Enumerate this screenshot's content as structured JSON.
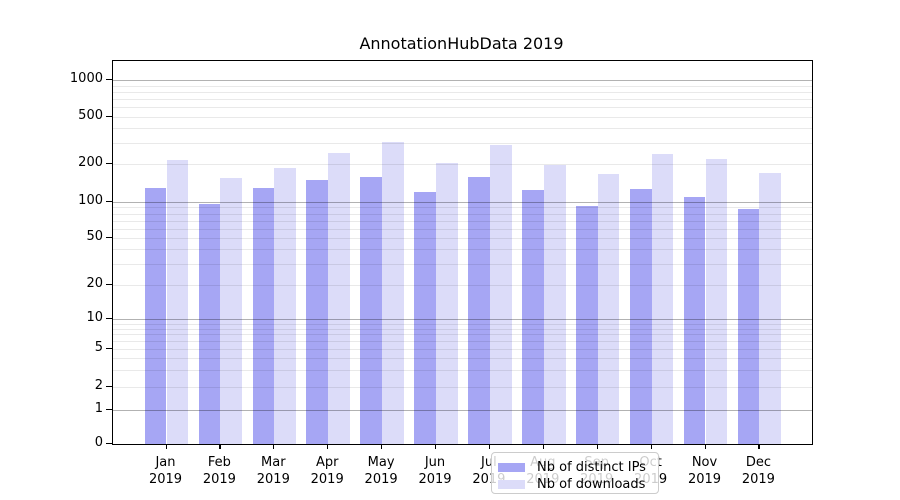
{
  "chart_data": {
    "type": "bar",
    "title": "AnnotationHubData 2019",
    "categories": [
      "Jan",
      "Feb",
      "Mar",
      "Apr",
      "May",
      "Jun",
      "Jul",
      "Aug",
      "Sep",
      "Oct",
      "Nov",
      "Dec"
    ],
    "category_year": "2019",
    "series": [
      {
        "name": "Nb of distinct IPs",
        "color": "#a6a6f4",
        "values": [
          130,
          97,
          130,
          149,
          158,
          120,
          157,
          124,
          92,
          126,
          110,
          87
        ]
      },
      {
        "name": "Nb of downloads",
        "color": "#dcdcf9",
        "values": [
          215,
          156,
          185,
          250,
          305,
          202,
          290,
          198,
          168,
          242,
          222,
          171
        ]
      }
    ],
    "yscale": "symlog",
    "ylim": [
      0,
      1400
    ],
    "y_ticks": [
      0,
      1,
      2,
      5,
      10,
      20,
      50,
      100,
      200,
      500,
      1000
    ],
    "major_gridlines": [
      1,
      10,
      100,
      1000
    ],
    "minor_gridlines": [
      2,
      3,
      4,
      5,
      6,
      7,
      8,
      9,
      20,
      30,
      40,
      50,
      60,
      70,
      80,
      90,
      200,
      300,
      400,
      500,
      600,
      700,
      800,
      900
    ],
    "grid": "on",
    "legend_position": "lower-center",
    "colors": {
      "spine": "#000000",
      "major_grid": "#b3b3b3",
      "minor_grid": "#e9e9e9",
      "background": "#ffffff"
    }
  }
}
